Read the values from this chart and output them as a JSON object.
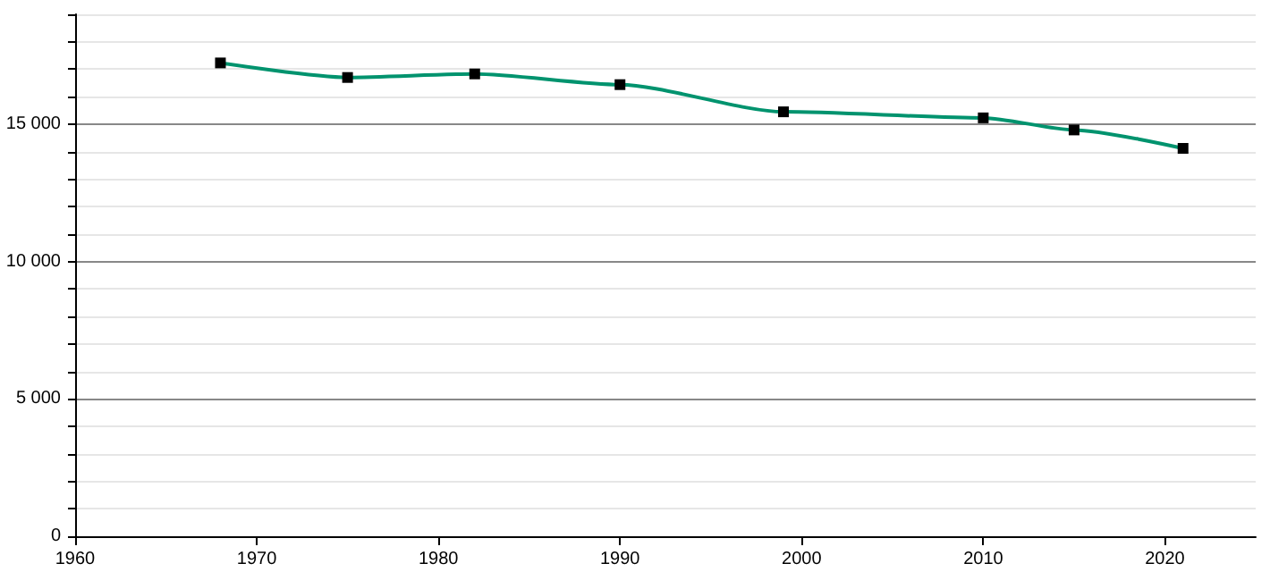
{
  "chart_data": {
    "type": "line",
    "x": [
      1968,
      1975,
      1982,
      1990,
      1999,
      2010,
      2015,
      2021
    ],
    "series": [
      {
        "color": "#00936e",
        "values": [
          17230,
          16700,
          16830,
          16440,
          15450,
          15230,
          14790,
          14120
        ]
      }
    ],
    "xlim": [
      1960,
      2025
    ],
    "xticks": [
      1960,
      1970,
      1980,
      1990,
      2000,
      2010,
      2020
    ],
    "ylim": [
      0,
      19000
    ],
    "yticks": [
      0,
      {
        "value": 1000,
        "label": null
      },
      {
        "value": 2000,
        "label": null
      },
      {
        "value": 3000,
        "label": null
      },
      {
        "value": 4000,
        "label": null
      },
      {
        "value": 5000,
        "label": "5 000"
      },
      {
        "value": 6000,
        "label": null
      },
      {
        "value": 7000,
        "label": null
      },
      {
        "value": 8000,
        "label": null
      },
      {
        "value": 9000,
        "label": null
      },
      {
        "value": 10000,
        "label": "10 000"
      },
      {
        "value": 11000,
        "label": null
      },
      {
        "value": 12000,
        "label": null
      },
      {
        "value": 13000,
        "label": null
      },
      {
        "value": 14000,
        "label": null
      },
      {
        "value": 15000,
        "label": "15 000"
      },
      {
        "value": 16000,
        "label": null
      },
      {
        "value": 17000,
        "label": null
      },
      {
        "value": 18000,
        "label": null
      },
      {
        "value": 19000,
        "label": null
      }
    ],
    "grid": "y",
    "marker": "square",
    "line_style": "solid"
  }
}
